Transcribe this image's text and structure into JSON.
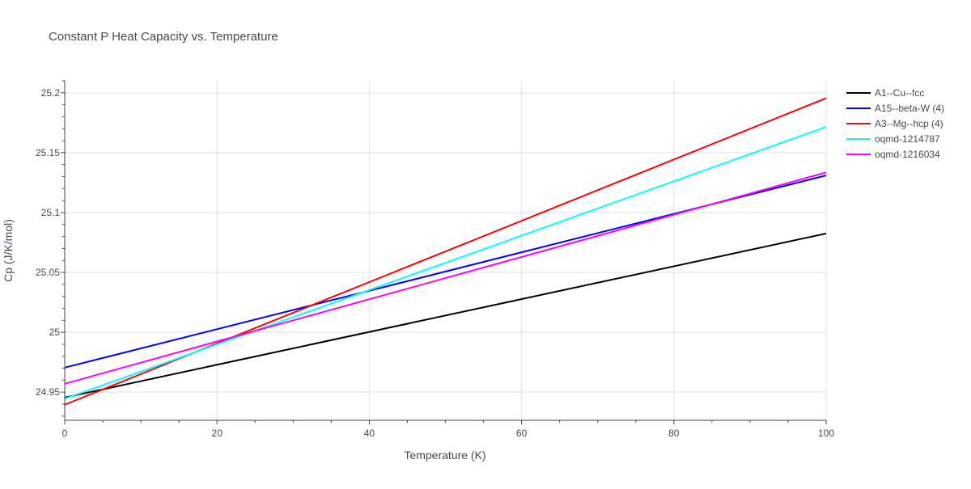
{
  "chart_data": {
    "type": "line",
    "title": "Constant P Heat Capacity vs. Temperature",
    "xlabel": "Temperature (K)",
    "ylabel": "Cp (J/K/mol)",
    "xlim": [
      0,
      100
    ],
    "ylim": [
      24.9265,
      25.21
    ],
    "x_ticks": [
      0,
      20,
      40,
      60,
      80,
      100
    ],
    "x_tick_labels": [
      "0",
      "20",
      "40",
      "60",
      "80",
      "100"
    ],
    "y_ticks": [
      24.95,
      25,
      25.05,
      25.1,
      25.15,
      25.2
    ],
    "y_tick_labels": [
      "24.95",
      "25",
      "25.05",
      "25.1",
      "25.15",
      "25.2"
    ],
    "x_minor_step": 5,
    "y_minor_step": 0.01,
    "grid": true,
    "legend_position": "right",
    "series": [
      {
        "name": "A1--Cu--fcc",
        "color": "#000000",
        "x": [
          0,
          100
        ],
        "y": [
          24.9455,
          25.0825
        ]
      },
      {
        "name": "A15--beta-W (4)",
        "color": "#0000ff",
        "x": [
          0,
          100
        ],
        "y": [
          24.9705,
          25.131
        ]
      },
      {
        "name": "A3--Mg--hcp (4)",
        "color": "#ff0000",
        "x": [
          0,
          100
        ],
        "y": [
          24.9395,
          25.1955
        ]
      },
      {
        "name": "oqmd-1214787",
        "color": "#00ffff",
        "x": [
          0,
          100
        ],
        "y": [
          24.9445,
          25.1715
        ]
      },
      {
        "name": "oqmd-1216034",
        "color": "#ff00ff",
        "x": [
          0,
          100
        ],
        "y": [
          24.957,
          25.1335
        ]
      }
    ]
  }
}
